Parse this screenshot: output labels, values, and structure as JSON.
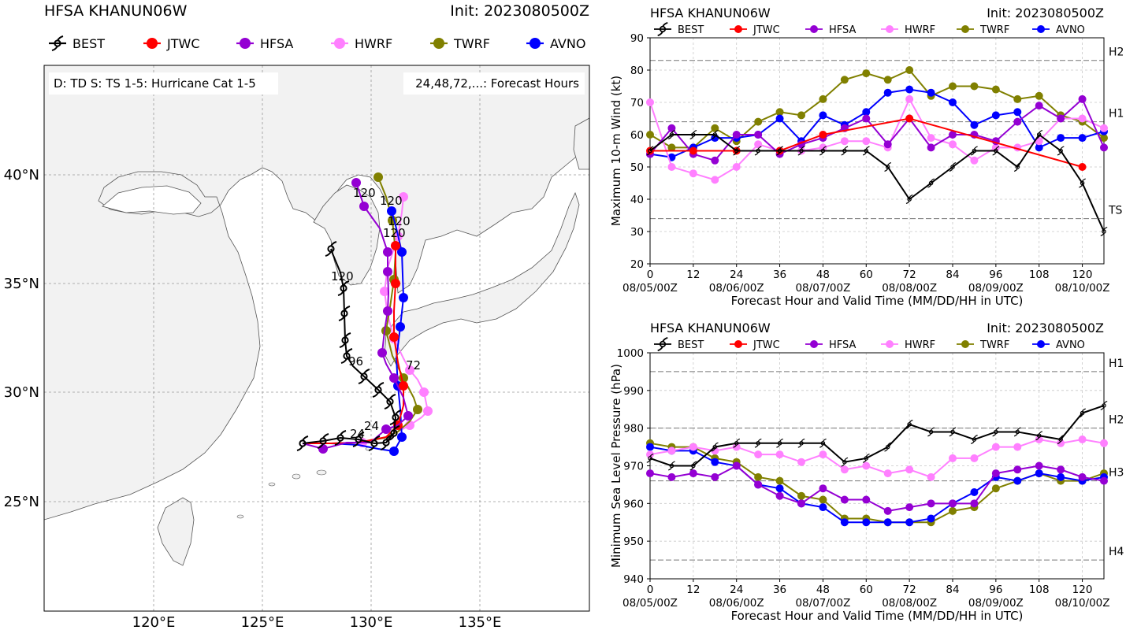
{
  "map": {
    "title": "HFSA KHANUN06W",
    "init": "Init: 2023080500Z",
    "info_left": "D: TD  S: TS  1-5: Hurricane Cat 1-5",
    "info_right": "24,48,72,...: Forecast Hours",
    "lat_labels": [
      "40°N",
      "35°N",
      "30°N",
      "25°N"
    ],
    "lon_labels": [
      "120°E",
      "125°E",
      "130°E",
      "135°E"
    ],
    "track_labels": [
      {
        "text": "120",
        "model": "HFSA"
      },
      {
        "text": "120",
        "model": "AVNO"
      },
      {
        "text": "120",
        "model": "JTWC"
      },
      {
        "text": "120",
        "model": "TWRF"
      },
      {
        "text": "120",
        "model": "BEST"
      },
      {
        "text": "96",
        "model": "BEST"
      },
      {
        "text": "72",
        "model": "HWRF"
      },
      {
        "text": "24",
        "model": "HFSA"
      },
      {
        "text": "24",
        "model": "BEST"
      }
    ]
  },
  "legend": [
    {
      "name": "BEST",
      "color": "#000000",
      "marker": "hurricane-symbol"
    },
    {
      "name": "JTWC",
      "color": "#ff0000",
      "marker": "circle"
    },
    {
      "name": "HFSA",
      "color": "#9400d3",
      "marker": "circle"
    },
    {
      "name": "HWRF",
      "color": "#ff80ff",
      "marker": "circle"
    },
    {
      "name": "TWRF",
      "color": "#808000",
      "marker": "circle"
    },
    {
      "name": "AVNO",
      "color": "#0000ff",
      "marker": "circle"
    }
  ],
  "chart_data": [
    {
      "type": "line",
      "title": "HFSA KHANUN06W",
      "init": "Init: 2023080500Z",
      "xlabel": "Forecast Hour and Valid Time (MM/DD/HH in UTC)",
      "ylabel": "Maximum 10-m Wind (kt)",
      "xlim": [
        0,
        126
      ],
      "ylim": [
        20,
        90
      ],
      "xticks": [
        0,
        12,
        24,
        36,
        48,
        60,
        72,
        84,
        96,
        108,
        120
      ],
      "yticks": [
        20,
        30,
        40,
        50,
        60,
        70,
        80,
        90
      ],
      "date_labels": [
        "08/05/00Z",
        "08/06/00Z",
        "08/07/00Z",
        "08/08/00Z",
        "08/09/00Z",
        "08/10/00Z"
      ],
      "ref_lines": [
        {
          "label": "H2",
          "value": 83
        },
        {
          "label": "H1",
          "value": 64
        },
        {
          "label": "TS",
          "value": 34
        }
      ],
      "series": [
        {
          "name": "BEST",
          "x": [
            0,
            6,
            12,
            18,
            24,
            30,
            36,
            42,
            48,
            54,
            60,
            66,
            72,
            78,
            84,
            90,
            96,
            102,
            108,
            114,
            120,
            126
          ],
          "values": [
            55,
            60,
            60,
            60,
            55,
            55,
            55,
            55,
            55,
            55,
            55,
            50,
            40,
            45,
            50,
            55,
            55,
            50,
            60,
            55,
            45,
            30
          ]
        },
        {
          "name": "JTWC",
          "x": [
            0,
            12,
            24,
            36,
            48,
            72,
            120
          ],
          "values": [
            55,
            55,
            55,
            55,
            60,
            65,
            50
          ]
        },
        {
          "name": "HFSA",
          "x": [
            0,
            6,
            12,
            18,
            24,
            30,
            36,
            42,
            48,
            54,
            60,
            66,
            72,
            78,
            84,
            90,
            96,
            102,
            108,
            114,
            120,
            126
          ],
          "values": [
            54,
            62,
            54,
            52,
            60,
            60,
            54,
            57,
            59,
            62,
            65,
            57,
            65,
            56,
            60,
            60,
            58,
            64,
            69,
            65,
            71,
            56
          ]
        },
        {
          "name": "HWRF",
          "x": [
            0,
            6,
            12,
            18,
            24,
            30,
            36,
            42,
            48,
            54,
            60,
            66,
            72,
            78,
            84,
            90,
            96,
            102,
            108,
            114,
            120,
            126
          ],
          "values": [
            70,
            50,
            48,
            46,
            50,
            57,
            55,
            55,
            56,
            58,
            58,
            56,
            71,
            59,
            57,
            52,
            56,
            56,
            58,
            65,
            65,
            62
          ]
        },
        {
          "name": "TWRF",
          "x": [
            0,
            6,
            12,
            18,
            24,
            30,
            36,
            42,
            48,
            54,
            60,
            66,
            72,
            78,
            84,
            90,
            96,
            102,
            108,
            114,
            120,
            126
          ],
          "values": [
            60,
            56,
            56,
            62,
            58,
            64,
            67,
            66,
            71,
            77,
            79,
            77,
            80,
            72,
            75,
            75,
            74,
            71,
            72,
            66,
            64,
            59
          ]
        },
        {
          "name": "AVNO",
          "x": [
            0,
            6,
            12,
            18,
            24,
            30,
            36,
            42,
            48,
            54,
            60,
            66,
            72,
            78,
            84,
            90,
            96,
            102,
            108,
            114,
            120,
            126
          ],
          "values": [
            54,
            53,
            56,
            59,
            59,
            60,
            65,
            58,
            66,
            63,
            67,
            73,
            74,
            73,
            70,
            63,
            66,
            67,
            56,
            59,
            59,
            61
          ]
        }
      ]
    },
    {
      "type": "line",
      "title": "HFSA KHANUN06W",
      "init": "Init: 2023080500Z",
      "xlabel": "Forecast Hour and Valid Time (MM/DD/HH in UTC)",
      "ylabel": "Minimum Sea Level Pressure (hPa)",
      "xlim": [
        0,
        126
      ],
      "ylim": [
        940,
        1000
      ],
      "xticks": [
        0,
        12,
        24,
        36,
        48,
        60,
        72,
        84,
        96,
        108,
        120
      ],
      "yticks": [
        940,
        950,
        960,
        970,
        980,
        990,
        1000
      ],
      "date_labels": [
        "08/05/00Z",
        "08/06/00Z",
        "08/07/00Z",
        "08/08/00Z",
        "08/09/00Z",
        "08/10/00Z"
      ],
      "ref_lines": [
        {
          "label": "H1",
          "value": 995
        },
        {
          "label": "H2",
          "value": 980
        },
        {
          "label": "H3",
          "value": 966
        },
        {
          "label": "H4",
          "value": 945
        }
      ],
      "series": [
        {
          "name": "BEST",
          "x": [
            0,
            6,
            12,
            18,
            24,
            30,
            36,
            42,
            48,
            54,
            60,
            66,
            72,
            78,
            84,
            90,
            96,
            102,
            108,
            114,
            120,
            126
          ],
          "values": [
            972,
            970,
            970,
            975,
            976,
            976,
            976,
            976,
            976,
            971,
            972,
            975,
            981,
            979,
            979,
            977,
            979,
            979,
            978,
            977,
            984,
            986
          ]
        },
        {
          "name": "JTWC",
          "x": [],
          "values": []
        },
        {
          "name": "HFSA",
          "x": [
            0,
            6,
            12,
            18,
            24,
            30,
            36,
            42,
            48,
            54,
            60,
            66,
            72,
            78,
            84,
            90,
            96,
            102,
            108,
            114,
            120,
            126
          ],
          "values": [
            968,
            967,
            968,
            967,
            970,
            965,
            962,
            960,
            964,
            961,
            961,
            958,
            959,
            960,
            960,
            960,
            968,
            969,
            970,
            969,
            967,
            966
          ]
        },
        {
          "name": "HWRF",
          "x": [
            0,
            6,
            12,
            18,
            24,
            30,
            36,
            42,
            48,
            54,
            60,
            66,
            72,
            78,
            84,
            90,
            96,
            102,
            108,
            114,
            120,
            126
          ],
          "values": [
            973,
            974,
            975,
            974,
            975,
            973,
            973,
            971,
            973,
            969,
            970,
            968,
            969,
            967,
            972,
            972,
            975,
            975,
            977,
            976,
            977,
            976
          ]
        },
        {
          "name": "TWRF",
          "x": [
            0,
            6,
            12,
            18,
            24,
            30,
            36,
            42,
            48,
            54,
            60,
            66,
            72,
            78,
            84,
            90,
            96,
            102,
            108,
            114,
            120,
            126
          ],
          "values": [
            976,
            975,
            975,
            972,
            971,
            967,
            966,
            962,
            961,
            956,
            956,
            955,
            955,
            955,
            958,
            959,
            964,
            966,
            968,
            966,
            966,
            968
          ]
        },
        {
          "name": "AVNO",
          "x": [
            0,
            6,
            12,
            18,
            24,
            30,
            36,
            42,
            48,
            54,
            60,
            66,
            72,
            78,
            84,
            90,
            96,
            102,
            108,
            114,
            120,
            126
          ],
          "values": [
            975,
            974,
            974,
            971,
            970,
            965,
            964,
            960,
            959,
            955,
            955,
            955,
            955,
            956,
            960,
            963,
            967,
            966,
            968,
            967,
            966,
            967
          ]
        }
      ]
    }
  ]
}
